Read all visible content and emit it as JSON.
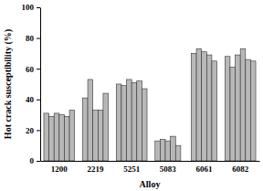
{
  "chart_data": {
    "type": "bar",
    "categories": [
      "1200",
      "2219",
      "5251",
      "5083",
      "6061",
      "6082"
    ],
    "x_label": "Alloy",
    "y_label": "Hot crack susceptibility (%)",
    "series": [
      {
        "values": [
          31,
          41,
          50,
          13,
          70,
          68
        ]
      },
      {
        "values": [
          29,
          53,
          49,
          14,
          73,
          61
        ]
      },
      {
        "values": [
          31,
          33,
          53,
          13,
          71,
          69
        ]
      },
      {
        "values": [
          30,
          33,
          51,
          16,
          69,
          73
        ]
      },
      {
        "values": [
          29,
          44,
          52,
          10,
          65,
          66
        ]
      },
      {
        "values": [
          33,
          null,
          47,
          null,
          null,
          65
        ]
      }
    ],
    "color": "#b8b8b8",
    "ylim": [
      0,
      100
    ],
    "yticks": [
      0,
      20,
      40,
      60,
      80,
      100
    ],
    "grid": false
  }
}
